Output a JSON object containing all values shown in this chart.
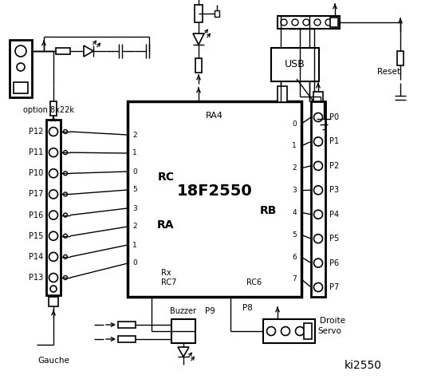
{
  "bg_color": "#ffffff",
  "line_color": "#000000",
  "title": "ki2550",
  "chip_label": "18F2550",
  "chip_sublabel": "RA4",
  "left_pin_labels": [
    "P12",
    "P11",
    "P10",
    "P17",
    "P16",
    "P15",
    "P14",
    "P13"
  ],
  "right_pin_labels": [
    "P0",
    "P1",
    "P2",
    "P3",
    "P4",
    "P5",
    "P6",
    "P7"
  ],
  "left_chip_pins_rc": [
    "2",
    "1",
    "0"
  ],
  "left_chip_pins_ra": [
    "5",
    "3",
    "2",
    "1",
    "0"
  ],
  "right_chip_pins_rb": [
    "0",
    "1",
    "2",
    "3",
    "4",
    "5",
    "6",
    "7"
  ],
  "rc_label": "RC",
  "ra_label": "RA",
  "rb_label": "RB",
  "gauche_label": "Gauche",
  "droite_label": "Droite",
  "buzzer_label": "Buzzer",
  "p9_label": "P9",
  "p8_label": "P8",
  "servo_label": "Servo",
  "reset_label": "Reset",
  "usb_label": "USB",
  "option_label": "option 8x22k"
}
